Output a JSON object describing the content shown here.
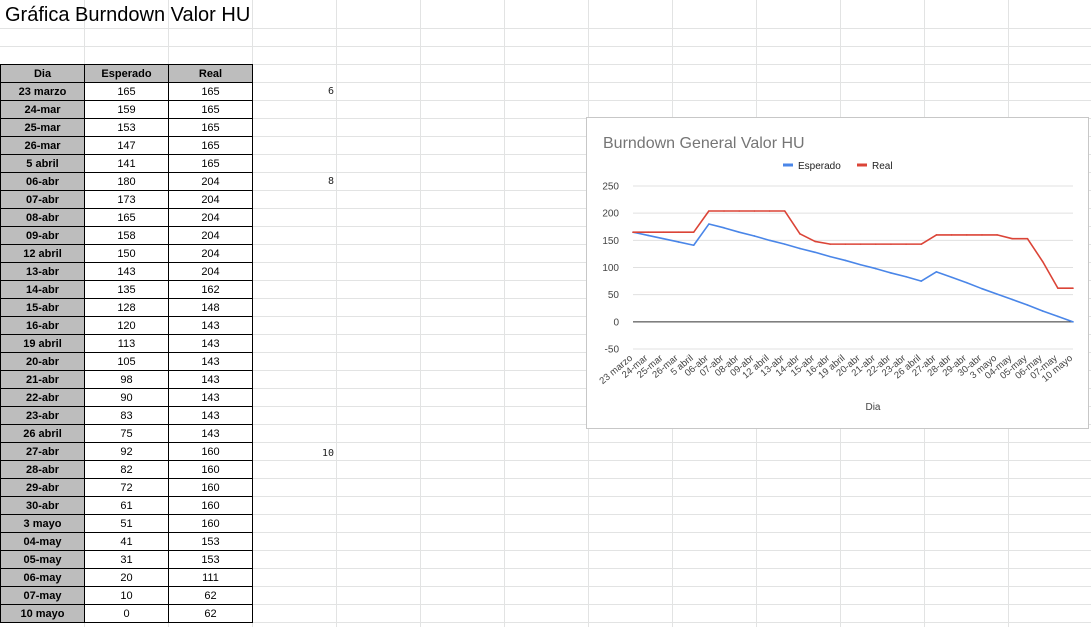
{
  "sheet": {
    "title": "Gráfica Burndown Valor HU"
  },
  "table": {
    "headers": [
      "Dia",
      "Esperado",
      "Real"
    ],
    "rows": [
      [
        "23 marzo",
        "165",
        "165"
      ],
      [
        "24-mar",
        "159",
        "165"
      ],
      [
        "25-mar",
        "153",
        "165"
      ],
      [
        "26-mar",
        "147",
        "165"
      ],
      [
        "5 abril",
        "141",
        "165"
      ],
      [
        "06-abr",
        "180",
        "204"
      ],
      [
        "07-abr",
        "173",
        "204"
      ],
      [
        "08-abr",
        "165",
        "204"
      ],
      [
        "09-abr",
        "158",
        "204"
      ],
      [
        "12 abril",
        "150",
        "204"
      ],
      [
        "13-abr",
        "143",
        "204"
      ],
      [
        "14-abr",
        "135",
        "162"
      ],
      [
        "15-abr",
        "128",
        "148"
      ],
      [
        "16-abr",
        "120",
        "143"
      ],
      [
        "19 abril",
        "113",
        "143"
      ],
      [
        "20-abr",
        "105",
        "143"
      ],
      [
        "21-abr",
        "98",
        "143"
      ],
      [
        "22-abr",
        "90",
        "143"
      ],
      [
        "23-abr",
        "83",
        "143"
      ],
      [
        "26 abril",
        "75",
        "143"
      ],
      [
        "27-abr",
        "92",
        "160"
      ],
      [
        "28-abr",
        "82",
        "160"
      ],
      [
        "29-abr",
        "72",
        "160"
      ],
      [
        "30-abr",
        "61",
        "160"
      ],
      [
        "3 mayo",
        "51",
        "160"
      ],
      [
        "04-may",
        "41",
        "153"
      ],
      [
        "05-may",
        "31",
        "153"
      ],
      [
        "06-may",
        "20",
        "111"
      ],
      [
        "07-may",
        "10",
        "62"
      ],
      [
        "10 mayo",
        "0",
        "62"
      ]
    ]
  },
  "side_numbers": [
    "6",
    "8",
    "10"
  ],
  "chart_data": {
    "type": "line",
    "title": "Burndown General Valor HU",
    "xlabel": "Dia",
    "ylabel": "",
    "ylim": [
      -50,
      250
    ],
    "yticks": [
      -50,
      0,
      50,
      100,
      150,
      200,
      250
    ],
    "legend_position": "top",
    "grid": true,
    "categories": [
      "23 marzo",
      "24-mar",
      "25-mar",
      "26-mar",
      "5 abril",
      "06-abr",
      "07-abr",
      "08-abr",
      "09-abr",
      "12 abril",
      "13-abr",
      "14-abr",
      "15-abr",
      "16-abr",
      "19 abril",
      "20-abr",
      "21-abr",
      "22-abr",
      "23-abr",
      "26 abril",
      "27-abr",
      "28-abr",
      "29-abr",
      "30-abr",
      "3 mayo",
      "04-may",
      "05-may",
      "06-may",
      "07-may",
      "10 mayo"
    ],
    "series": [
      {
        "name": "Esperado",
        "color": "#4a86e8",
        "values": [
          165,
          159,
          153,
          147,
          141,
          180,
          173,
          165,
          158,
          150,
          143,
          135,
          128,
          120,
          113,
          105,
          98,
          90,
          83,
          75,
          92,
          82,
          72,
          61,
          51,
          41,
          31,
          20,
          10,
          0
        ]
      },
      {
        "name": "Real",
        "color": "#db4437",
        "values": [
          165,
          165,
          165,
          165,
          165,
          204,
          204,
          204,
          204,
          204,
          204,
          162,
          148,
          143,
          143,
          143,
          143,
          143,
          143,
          143,
          160,
          160,
          160,
          160,
          160,
          153,
          153,
          111,
          62,
          62
        ]
      }
    ]
  }
}
